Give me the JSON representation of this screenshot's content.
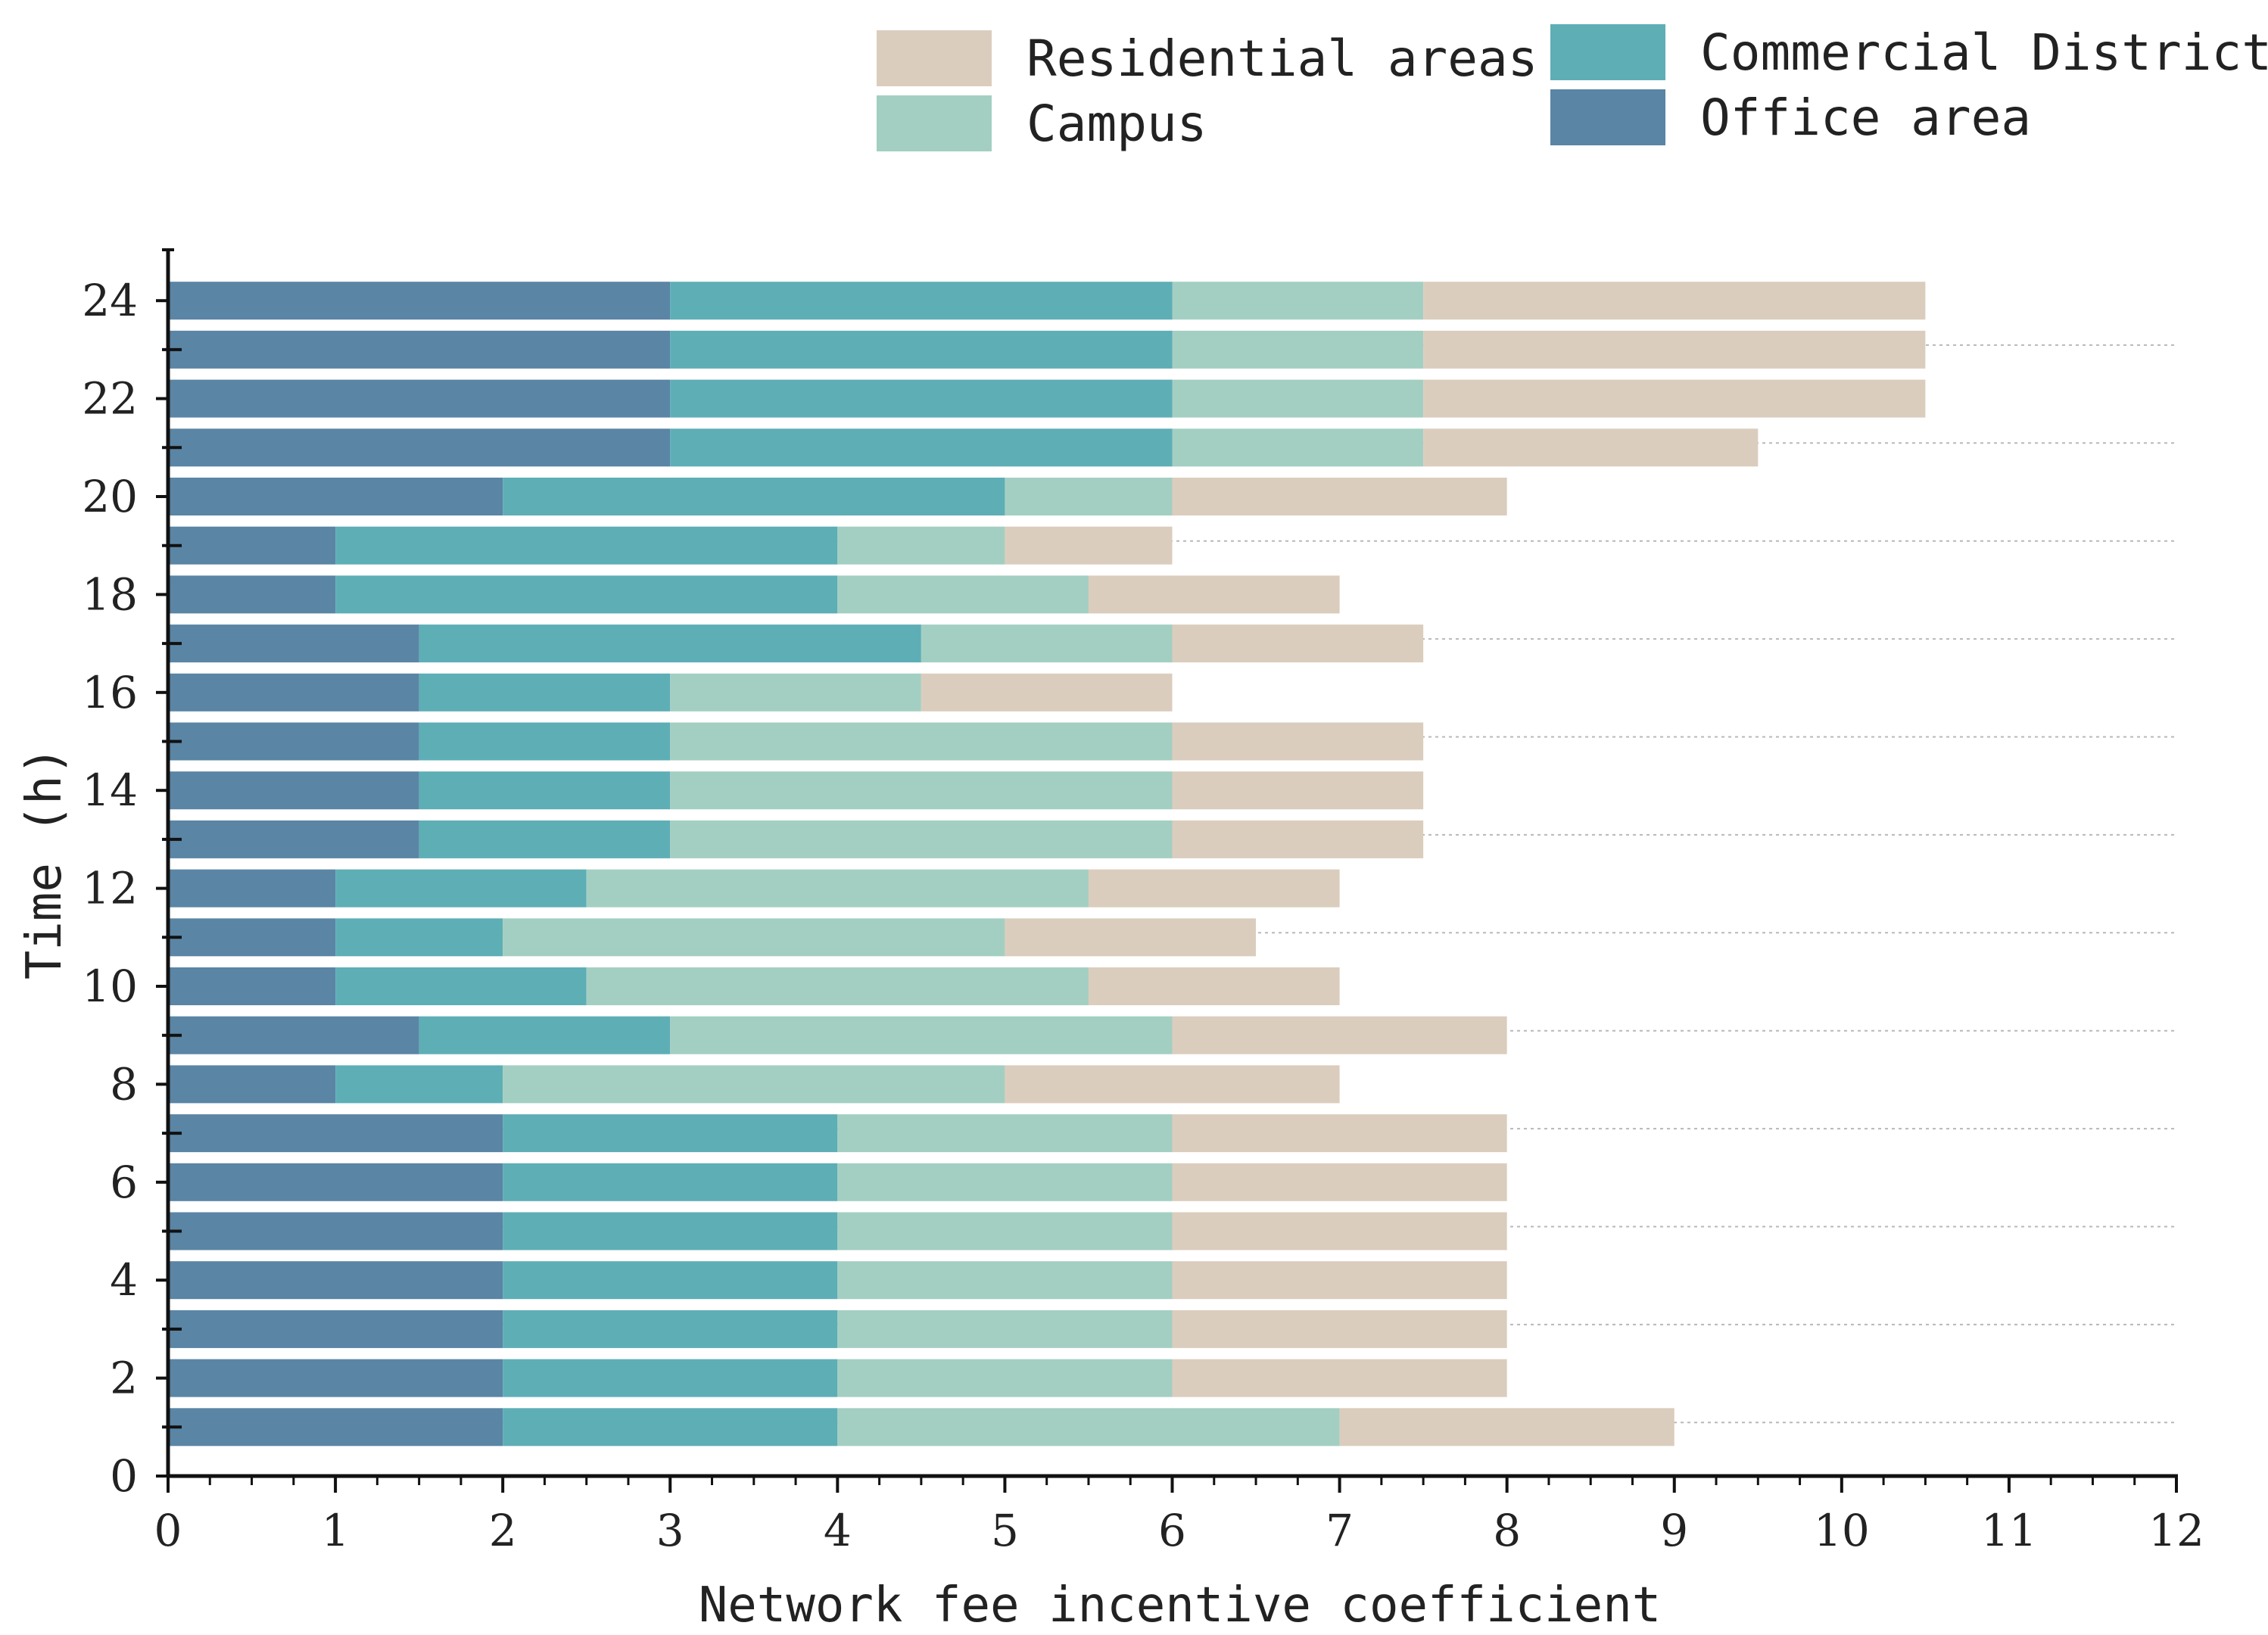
{
  "chart_data": {
    "type": "bar",
    "orientation": "horizontal",
    "stacked": true,
    "title": "",
    "xlabel": "Network fee incentive coefficient",
    "ylabel": "Time (h)",
    "xlim": [
      0,
      12
    ],
    "ylim": [
      0,
      24.6
    ],
    "xticks": [
      "0",
      "1",
      "2",
      "3",
      "4",
      "5",
      "6",
      "7",
      "8",
      "9",
      "10",
      "11",
      "12"
    ],
    "yticks": [
      "0",
      "2",
      "4",
      "6",
      "8",
      "10",
      "12",
      "14",
      "16",
      "18",
      "20",
      "22",
      "24"
    ],
    "legend_position": "top-right",
    "categories": [
      1,
      2,
      3,
      4,
      5,
      6,
      7,
      8,
      9,
      10,
      11,
      12,
      13,
      14,
      15,
      16,
      17,
      18,
      19,
      20,
      21,
      22,
      23,
      24
    ],
    "series": [
      {
        "name": "Office area",
        "color": "#5a85a5",
        "values": [
          2,
          2,
          2,
          2,
          2,
          2,
          2,
          1,
          1.5,
          1,
          1,
          1,
          1.5,
          1.5,
          1.5,
          1.5,
          1.5,
          1,
          1,
          2,
          3,
          3,
          3,
          3
        ]
      },
      {
        "name": "Commercial District",
        "color": "#5eaeb6",
        "values": [
          2,
          2,
          2,
          2,
          2,
          2,
          2,
          1,
          1.5,
          1.5,
          1,
          1.5,
          1.5,
          1.5,
          1.5,
          1.5,
          3,
          3,
          3,
          3,
          3,
          3,
          3,
          3
        ]
      },
      {
        "name": "Campus",
        "color": "#a3cfc2",
        "values": [
          3,
          2,
          2,
          2,
          2,
          2,
          2,
          3,
          3,
          3,
          3,
          3,
          3,
          3,
          3,
          1.5,
          1.5,
          1.5,
          1,
          1,
          1.5,
          1.5,
          1.5,
          1.5
        ]
      },
      {
        "name": "Residential areas",
        "color": "#dbcdbd",
        "values": [
          2,
          2,
          2,
          2,
          2,
          2,
          2,
          2,
          2,
          1.5,
          1.5,
          1.5,
          1.5,
          1.5,
          1.5,
          1.5,
          1.5,
          1.5,
          1,
          2,
          2,
          3,
          3,
          3
        ]
      }
    ],
    "legend_order": [
      "Residential areas",
      "Commercial District",
      "Campus",
      "Office area"
    ]
  }
}
